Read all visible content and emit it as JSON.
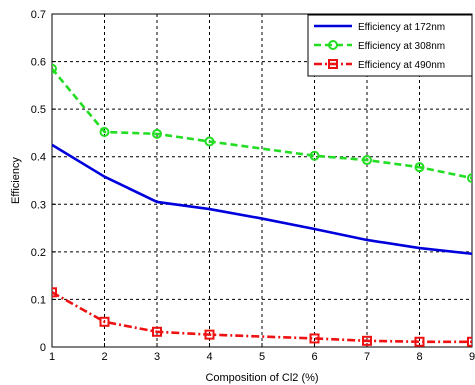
{
  "chart_data": {
    "type": "line",
    "xlabel": "Composition of Cl2 (%)",
    "ylabel": "Efficiency",
    "xlim": [
      1,
      9
    ],
    "ylim": [
      0,
      0.7
    ],
    "x_ticks": [
      "1",
      "2",
      "3",
      "4",
      "5",
      "6",
      "7",
      "8",
      "9"
    ],
    "y_ticks": [
      "0",
      "0.1",
      "0.2",
      "0.3",
      "0.4",
      "0.5",
      "0.6",
      "0.7"
    ],
    "grid": true,
    "legend_position": "top-right",
    "series": [
      {
        "name": "Efficiency at 172nm",
        "color": "#0000dd",
        "line": "solid",
        "marker": "none",
        "x": [
          1,
          2,
          3,
          4,
          5,
          6,
          7,
          8,
          9
        ],
        "values": [
          0.425,
          0.358,
          0.305,
          0.29,
          0.27,
          0.248,
          0.225,
          0.208,
          0.196
        ]
      },
      {
        "name": "Efficiency at 308nm",
        "color": "#22dd22",
        "line": "dashed",
        "marker": "circle",
        "x": [
          1,
          2,
          3,
          4,
          6,
          7,
          8,
          9
        ],
        "values": [
          0.585,
          0.452,
          0.448,
          0.432,
          0.402,
          0.393,
          0.378,
          0.355
        ]
      },
      {
        "name": "Efficiency at 490nm",
        "color": "#ee1111",
        "line": "dashdot",
        "marker": "square",
        "x": [
          1,
          2,
          3,
          4,
          6,
          7,
          8,
          9
        ],
        "values": [
          0.115,
          0.053,
          0.032,
          0.026,
          0.018,
          0.013,
          0.011,
          0.011
        ]
      }
    ]
  }
}
